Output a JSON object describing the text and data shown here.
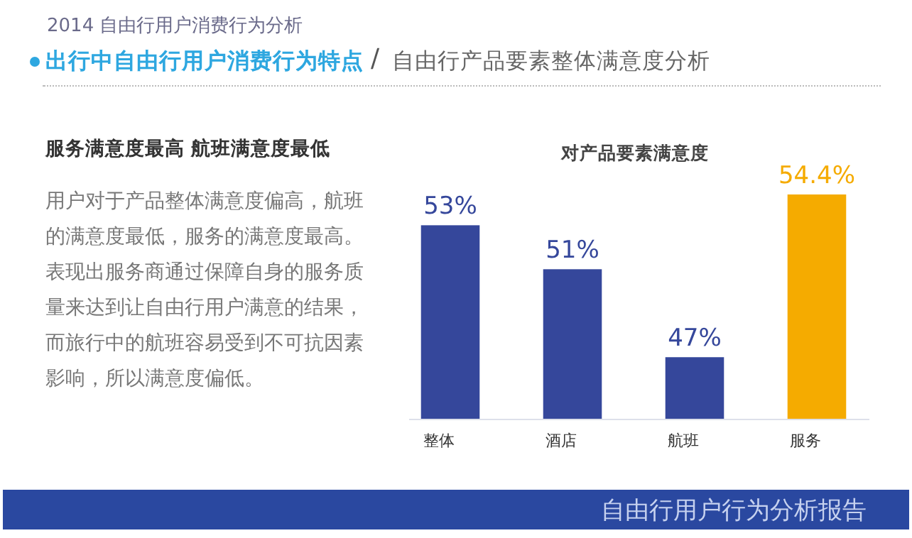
{
  "chart_data": {
    "type": "bar",
    "title": "对产品要素满意度",
    "categories": [
      "整体",
      "酒店",
      "航班",
      "服务"
    ],
    "values": [
      53,
      51,
      47,
      54.4
    ],
    "value_labels": [
      "53%",
      "51%",
      "47%",
      "54.4%"
    ],
    "colors": [
      "#35479b",
      "#35479b",
      "#35479b",
      "#f5ab00"
    ],
    "ylim": [
      44.2,
      54.4
    ],
    "annotations": [
      "2014 自由行用户消费行为分析",
      "出行中自由行用户消费行为特点",
      "/",
      "自由行产品要素整体满意度分析",
      "服务满意度最高 航班满意度最低",
      "用户对于产品整体满意度偏高，航班的满意度最低，服务的满意度最高。表现出服务商通过保障自身的服务质量来达到让自由行用户满意的结果，而旅行中的航班容易受到不可抗因素影响，所以满意度偏低。",
      "自由行用户行为分析报告"
    ]
  }
}
